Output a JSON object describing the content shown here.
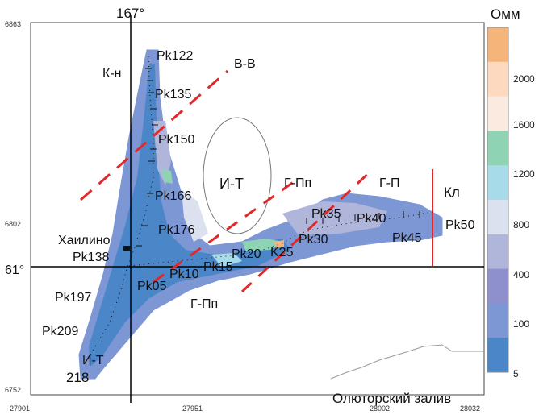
{
  "map": {
    "y_axis_labels": {
      "top": "6863",
      "middle": "6802",
      "bottom": "6752"
    },
    "x_axis_labels": {
      "left": "27901",
      "mid": "27951",
      "mid2": "28002",
      "right": "28032"
    },
    "meridian_label": "167°",
    "parallel_label": "61°",
    "water_label": "Олюторский залив"
  },
  "zones": {
    "kn": "К-н",
    "vv": "В-В",
    "it_center": "И-Т",
    "gpp_upper": "Г-Пп",
    "gp": "Г-П",
    "kl": "Кл",
    "gpp_lower": "Г-Пп",
    "it_lower": "И-Т"
  },
  "pickets": {
    "pk122": "Pk122",
    "pk135": "Pk135",
    "pk150": "Pk150",
    "pk166": "Pk166",
    "pk176": "Pk176",
    "khailino": "Хаилино",
    "pk138": "Pk138",
    "pk05": "Pk05",
    "pk10": "Pk10",
    "pk15": "Pk15",
    "pk20": "Pk20",
    "k25": "K25",
    "pk30": "Pk30",
    "pk35": "Pk35",
    "pk40": "Pk40",
    "pk45": "Pk45",
    "pk50": "Pk50",
    "pk197": "Pk197",
    "pk209": "Pk209",
    "n218": "218"
  },
  "legend": {
    "title": "Омм",
    "ticks": [
      "2000",
      "1600",
      "1200",
      "800",
      "400",
      "100",
      "5"
    ],
    "colors": [
      "#f5b47a",
      "#fcd9bf",
      "#fbeadf",
      "#8ed3b4",
      "#a8dbe9",
      "#dbe1ef",
      "#b0b5da",
      "#8d90cc",
      "#7d96d4",
      "#4a86c8"
    ]
  }
}
